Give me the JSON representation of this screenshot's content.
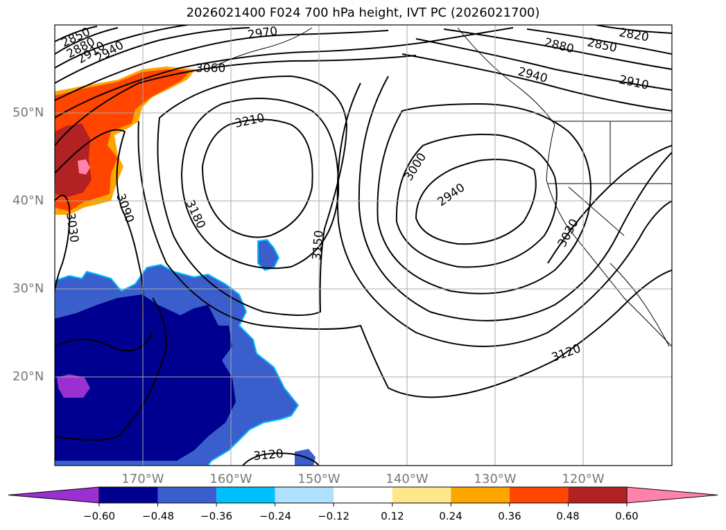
{
  "title": "2026021400 F024 700 hPa height, IVT PC (2026021700)",
  "lat_labels": [
    "50°N",
    "40°N",
    "30°N",
    "20°N"
  ],
  "lon_labels": [
    "170°W",
    "160°W",
    "150°W",
    "140°W",
    "130°W",
    "120°W"
  ],
  "contour_labels": [
    "2850",
    "2880",
    "2910",
    "2940",
    "2970",
    "3060",
    "3210",
    "3090",
    "3030",
    "3180",
    "3150",
    "3000",
    "2940",
    "2820",
    "2850",
    "2880",
    "2940",
    "2910",
    "3030",
    "3120",
    "3120"
  ],
  "colorbar": {
    "ticks": [
      "−0.60",
      "−0.48",
      "−0.36",
      "−0.24",
      "−0.12",
      "0.12",
      "0.24",
      "0.36",
      "0.48",
      "0.60"
    ],
    "colors": [
      "#9b30d0",
      "#000090",
      "#3a5fcd",
      "#00bfff",
      "#b0e2ff",
      "#ffffff",
      "#ffe88c",
      "#ffa500",
      "#ff4500",
      "#b22222",
      "#ff83a8"
    ]
  }
}
